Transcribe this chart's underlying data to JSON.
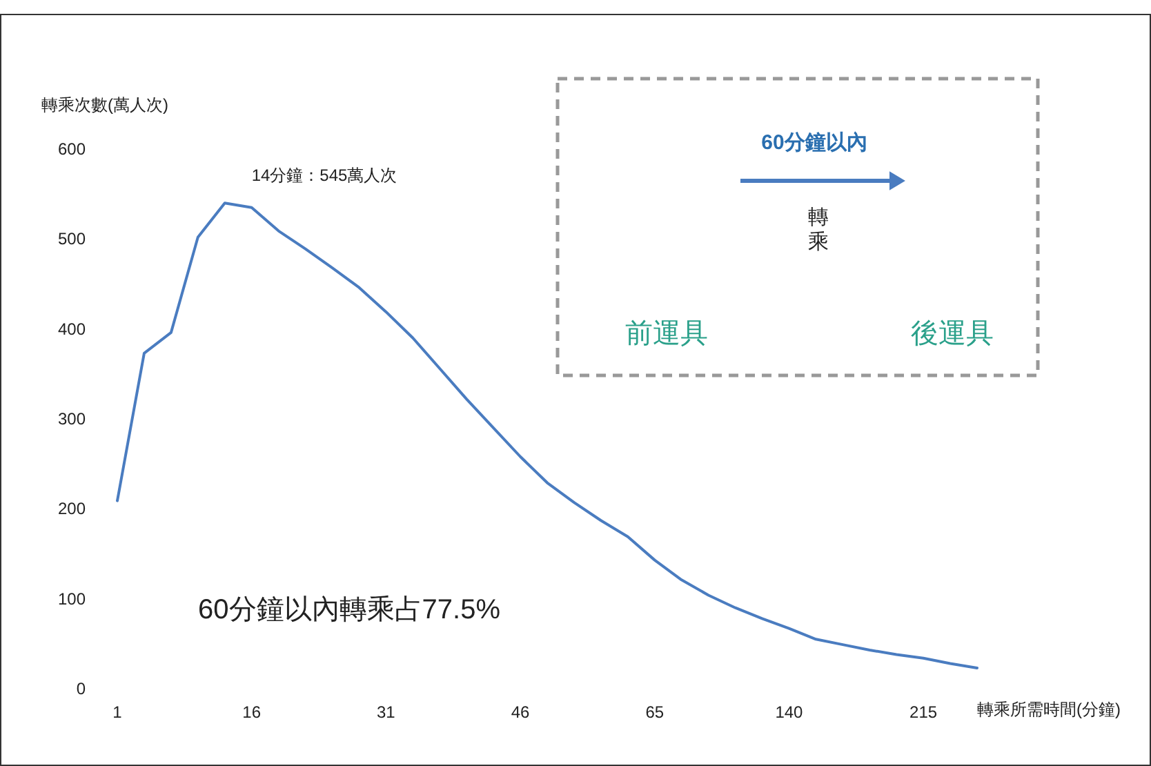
{
  "chart_data": {
    "type": "line",
    "ylabel": "轉乘次數(萬人次)",
    "xlabel": "轉乘所需時間(分鐘)",
    "categories": [
      "1",
      null,
      null,
      null,
      null,
      "16",
      null,
      null,
      null,
      null,
      "31",
      null,
      null,
      null,
      null,
      "46",
      null,
      null,
      null,
      null,
      "65",
      null,
      null,
      null,
      null,
      "140",
      null,
      null,
      null,
      null,
      "215",
      null,
      null
    ],
    "series": [
      {
        "color": "#4a7cc0",
        "values": [
          209,
          373,
          396,
          502,
          540,
          535,
          509,
          489,
          468,
          446,
          419,
          390,
          356,
          322,
          290,
          258,
          229,
          207,
          187,
          169,
          143,
          121,
          104,
          90,
          78,
          67,
          55,
          49,
          43,
          38,
          34,
          28,
          23
        ]
      }
    ],
    "ylim": [
      0,
      600
    ],
    "yticks": [
      0,
      100,
      200,
      300,
      400,
      500,
      600
    ],
    "grid": false,
    "marker": "none",
    "line_style": "solid",
    "annotations": [
      "14分鐘：545萬人次",
      "60分鐘以內轉乘占77.5%",
      "60分鐘以內",
      "轉乘",
      "前運具",
      "後運具"
    ]
  }
}
